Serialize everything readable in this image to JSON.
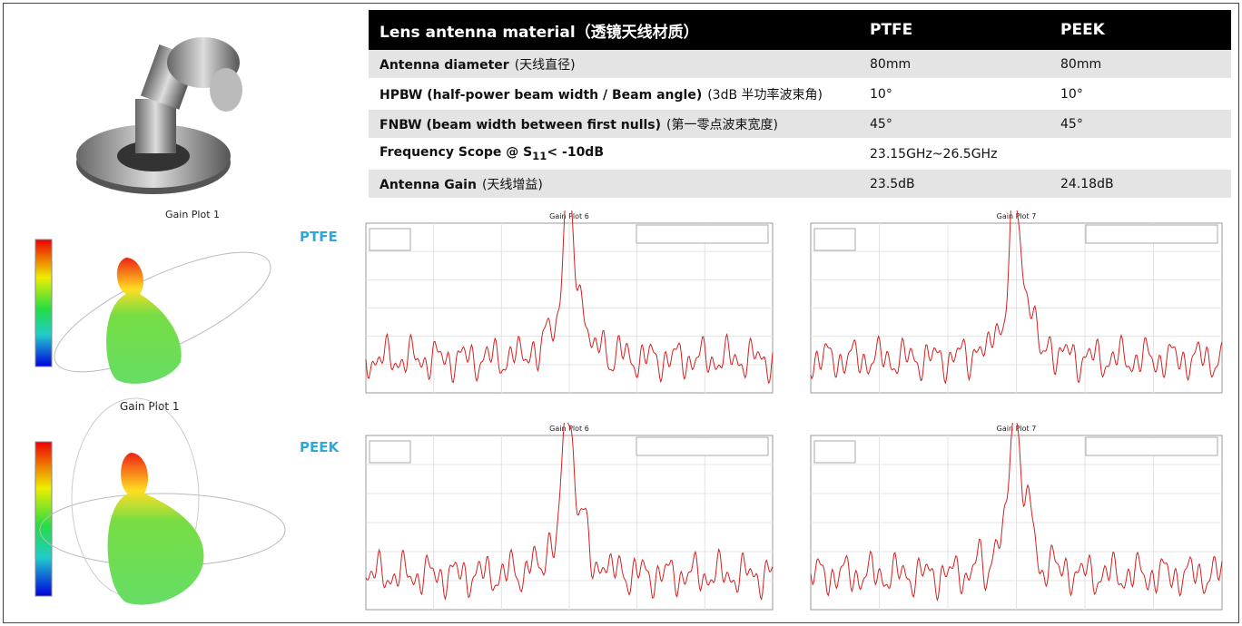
{
  "table": {
    "header": [
      "Lens antenna material（透镜天线材质）",
      "PTFE",
      "PEEK"
    ],
    "rows": [
      [
        {
          "label": "Antenna diameter",
          "note": "(天线直径)"
        },
        "80mm",
        "80mm"
      ],
      [
        {
          "label": "HPBW (half-power beam width / Beam angle)",
          "note": "(3dB 半功率波束角)"
        },
        "10°",
        "10°"
      ],
      [
        {
          "label": "FNBW (beam width between first nulls)",
          "note": "(第一零点波束宽度)"
        },
        "45°",
        "45°"
      ],
      [
        {
          "label": "Frequency Scope @ S",
          "sub": "11",
          "after": "< -10dB"
        },
        "23.15GHz~26.5GHz"
      ],
      [
        {
          "label": "Antenna Gain",
          "note": "(天线增益)"
        },
        "23.5dB",
        "24.18dB"
      ]
    ]
  },
  "left_labels": [
    "Gain Plot 1",
    "Gain Plot 1"
  ],
  "materials": [
    "PTFE",
    "PEEK"
  ],
  "panels": [
    {
      "title": "Gain Plot 6"
    },
    {
      "title": "Gain Plot 7"
    },
    {
      "title": "Gain Plot 6"
    },
    {
      "title": "Gain Plot 7"
    }
  ]
}
